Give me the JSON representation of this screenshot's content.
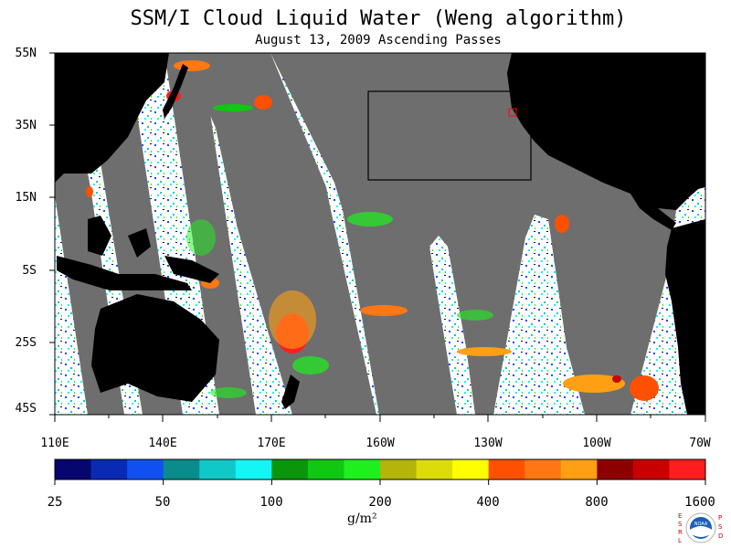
{
  "header": {
    "title": "SSM/I Cloud Liquid Water (Weng algorithm)",
    "subtitle": "August 13, 2009 Ascending Passes"
  },
  "map": {
    "lat_labels": [
      "55N",
      "35N",
      "15N",
      "5S",
      "25S",
      "45S"
    ],
    "lon_labels": [
      "110E",
      "140E",
      "170E",
      "160W",
      "130W",
      "100W",
      "70W"
    ],
    "lon_range": [
      "110E",
      "70W"
    ],
    "lat_range": [
      "45S",
      "55N"
    ],
    "colors": {
      "land": "#000000",
      "no_data_swath_gap": "#6e6e6e",
      "ocean_clear": "#ffffff"
    }
  },
  "colorbar": {
    "labels": [
      "25",
      "50",
      "100",
      "200",
      "400",
      "800",
      "1600"
    ],
    "units": "g/m²",
    "colors": [
      "#06066e",
      "#0a2ab4",
      "#1050f0",
      "#0a8c8c",
      "#10c8c8",
      "#14f5f5",
      "#0a960a",
      "#0fc80f",
      "#1ef01e",
      "#b4b40a",
      "#dcdc0a",
      "#ffff00",
      "#ff5000",
      "#ff7814",
      "#ffa014",
      "#8c0000",
      "#c80000",
      "#ff1e1e"
    ]
  },
  "logo": {
    "left_letters": [
      "E",
      "S",
      "R",
      "L"
    ],
    "right_letters": [
      "P",
      "S",
      "D"
    ],
    "text": "NOAA"
  }
}
